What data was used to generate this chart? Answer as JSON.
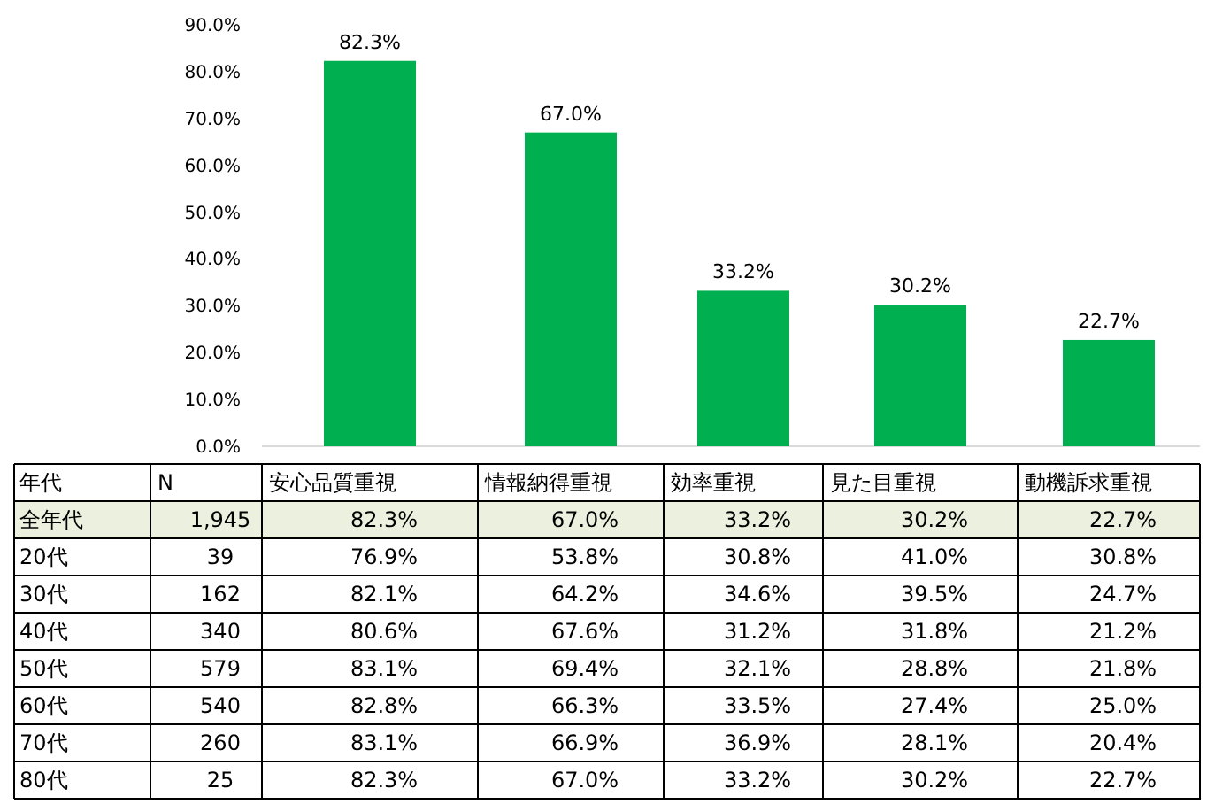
{
  "chart_data": [
    {
      "type": "bar",
      "categories": [
        null,
        null,
        null,
        null,
        null
      ],
      "values": [
        82.3,
        67.0,
        33.2,
        30.2,
        22.7
      ],
      "color": "#00b050",
      "value_labels": [
        "82.3%",
        "67.0%",
        "33.2%",
        "30.2%",
        "22.7%"
      ],
      "ylim": [
        0,
        90
      ],
      "yticks": [
        {
          "value": 0,
          "label": "0.0%"
        },
        {
          "value": 10,
          "label": "10.0%"
        },
        {
          "value": 20,
          "label": "20.0%"
        },
        {
          "value": 30,
          "label": "30.0%"
        },
        {
          "value": 40,
          "label": "40.0%"
        },
        {
          "value": 50,
          "label": "50.0%"
        },
        {
          "value": 60,
          "label": "60.0%"
        },
        {
          "value": 70,
          "label": "70.0%"
        },
        {
          "value": 80,
          "label": "80.0%"
        },
        {
          "value": 90,
          "label": "90.0%"
        }
      ]
    },
    {
      "type": "heatmap",
      "ylabel": "年代",
      "categories": [
        "N",
        "安心品質重視",
        "情報納得重視",
        "効率重視",
        "見た目重視",
        "動機訴求重視"
      ],
      "y_categories": [
        "全年代",
        "20代",
        "30代",
        "40代",
        "50代",
        "60代",
        "70代",
        "80代"
      ],
      "cells": [
        [
          1945,
          82.3,
          67.0,
          33.2,
          30.2,
          22.7
        ],
        [
          39,
          76.9,
          53.8,
          30.8,
          41.0,
          30.8
        ],
        [
          162,
          82.1,
          64.2,
          34.6,
          39.5,
          24.7
        ],
        [
          340,
          80.6,
          67.6,
          31.2,
          31.8,
          21.2
        ],
        [
          579,
          83.1,
          69.4,
          32.1,
          28.8,
          21.8
        ],
        [
          540,
          82.8,
          66.3,
          33.5,
          27.4,
          25.0
        ],
        [
          260,
          83.1,
          66.9,
          36.9,
          28.1,
          20.4
        ],
        [
          25,
          82.3,
          67.0,
          33.2,
          30.2,
          22.7
        ]
      ],
      "cell_labels": [
        [
          "1,945",
          "82.3%",
          "67.0%",
          "33.2%",
          "30.2%",
          "22.7%"
        ],
        [
          "39",
          "76.9%",
          "53.8%",
          "30.8%",
          "41.0%",
          "30.8%"
        ],
        [
          "162",
          "82.1%",
          "64.2%",
          "34.6%",
          "39.5%",
          "24.7%"
        ],
        [
          "340",
          "80.6%",
          "67.6%",
          "31.2%",
          "31.8%",
          "21.2%"
        ],
        [
          "579",
          "83.1%",
          "69.4%",
          "32.1%",
          "28.8%",
          "21.8%"
        ],
        [
          "540",
          "82.8%",
          "66.3%",
          "33.5%",
          "27.4%",
          "25.0%"
        ],
        [
          "260",
          "83.1%",
          "66.9%",
          "36.9%",
          "28.1%",
          "20.4%"
        ],
        [
          "25",
          "82.3%",
          "67.0%",
          "33.2%",
          "30.2%",
          "22.7%"
        ]
      ]
    }
  ]
}
